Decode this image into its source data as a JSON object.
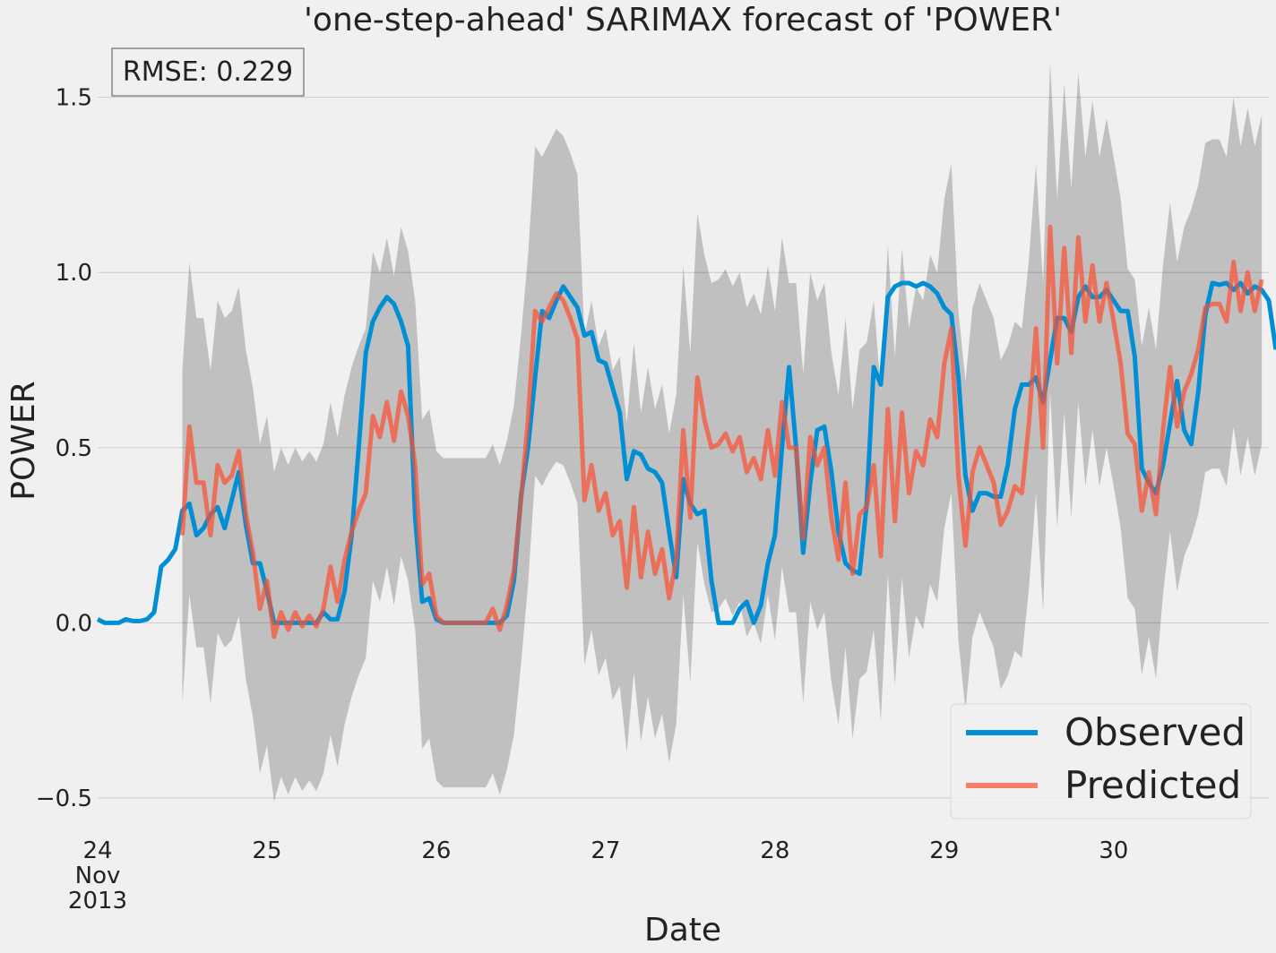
{
  "chart_data": {
    "type": "line",
    "title": "'one-step-ahead' SARIMAX forecast of 'POWER'",
    "xlabel": "Date",
    "ylabel": "POWER",
    "annotation": "RMSE: 0.229",
    "xlim": [
      "2013-11-24 00:00",
      "2013-11-30 22:00"
    ],
    "ylim": [
      -0.6,
      1.65
    ],
    "grid": "y",
    "legend_position": "bottom-right",
    "x_ticks": [
      {
        "date": "2013-11-24",
        "lines": [
          "24",
          "Nov",
          "2013"
        ]
      },
      {
        "date": "2013-11-25",
        "lines": [
          "25"
        ]
      },
      {
        "date": "2013-11-26",
        "lines": [
          "26"
        ]
      },
      {
        "date": "2013-11-27",
        "lines": [
          "27"
        ]
      },
      {
        "date": "2013-11-28",
        "lines": [
          "28"
        ]
      },
      {
        "date": "2013-11-29",
        "lines": [
          "29"
        ]
      },
      {
        "date": "2013-11-30",
        "lines": [
          "30"
        ]
      }
    ],
    "y_ticks": [
      {
        "value": -0.5,
        "label": "−0.5"
      },
      {
        "value": 0.0,
        "label": "0.0"
      },
      {
        "value": 0.5,
        "label": "0.5"
      },
      {
        "value": 1.0,
        "label": "1.0"
      },
      {
        "value": 1.5,
        "label": "1.5"
      }
    ],
    "interval_step_hours": 1,
    "series": [
      {
        "name": "Observed",
        "color": "#008fd5",
        "x_start": "2013-11-24 00:00",
        "step_hours": 1,
        "values": [
          0.01,
          0.0,
          0.0,
          0.0,
          0.01,
          0.005,
          0.005,
          0.01,
          0.03,
          0.16,
          0.18,
          0.21,
          0.32,
          0.34,
          0.25,
          0.27,
          0.31,
          0.33,
          0.27,
          0.35,
          0.43,
          0.28,
          0.17,
          0.17,
          0.09,
          0.0,
          0.0,
          0.0,
          0.0,
          0.0,
          0.0,
          0.0,
          0.03,
          0.01,
          0.01,
          0.09,
          0.25,
          0.5,
          0.77,
          0.86,
          0.9,
          0.93,
          0.91,
          0.86,
          0.79,
          0.3,
          0.06,
          0.07,
          0.01,
          0.0,
          0.0,
          0.0,
          0.0,
          0.0,
          0.0,
          0.0,
          0.0,
          0.0,
          0.02,
          0.12,
          0.36,
          0.5,
          0.7,
          0.89,
          0.87,
          0.92,
          0.96,
          0.93,
          0.9,
          0.82,
          0.83,
          0.75,
          0.74,
          0.67,
          0.6,
          0.41,
          0.49,
          0.48,
          0.44,
          0.43,
          0.4,
          0.26,
          0.13,
          0.41,
          0.34,
          0.31,
          0.32,
          0.12,
          0.0,
          0.0,
          0.0,
          0.04,
          0.06,
          0.0,
          0.05,
          0.17,
          0.25,
          0.5,
          0.73,
          0.5,
          0.2,
          0.4,
          0.55,
          0.56,
          0.43,
          0.26,
          0.17,
          0.15,
          0.14,
          0.34,
          0.73,
          0.68,
          0.93,
          0.96,
          0.97,
          0.97,
          0.96,
          0.97,
          0.96,
          0.94,
          0.9,
          0.88,
          0.7,
          0.42,
          0.32,
          0.37,
          0.37,
          0.36,
          0.36,
          0.45,
          0.61,
          0.68,
          0.68,
          0.7,
          0.63,
          0.75,
          0.87,
          0.87,
          0.83,
          0.93,
          0.96,
          0.93,
          0.93,
          0.95,
          0.92,
          0.89,
          0.89,
          0.76,
          0.44,
          0.4,
          0.37,
          0.45,
          0.57,
          0.69,
          0.55,
          0.51,
          0.66,
          0.88,
          0.97,
          0.965,
          0.97,
          0.95,
          0.97,
          0.94,
          0.96,
          0.95,
          0.92,
          0.78
        ]
      },
      {
        "name": "Predicted",
        "color": "#fc4f30",
        "x_start": "2013-11-24 12:00",
        "step_hours": 1,
        "values": [
          0.25,
          0.56,
          0.4,
          0.4,
          0.25,
          0.45,
          0.4,
          0.42,
          0.49,
          0.31,
          0.2,
          0.04,
          0.12,
          -0.04,
          0.03,
          -0.02,
          0.03,
          -0.01,
          0.02,
          -0.01,
          0.04,
          0.16,
          0.06,
          0.18,
          0.26,
          0.32,
          0.37,
          0.59,
          0.53,
          0.63,
          0.52,
          0.66,
          0.59,
          0.45,
          0.11,
          0.14,
          0.02,
          0.0,
          0.0,
          0.0,
          0.0,
          0.0,
          0.0,
          0.0,
          0.04,
          -0.02,
          0.05,
          0.15,
          0.35,
          0.58,
          0.89,
          0.86,
          0.9,
          0.94,
          0.92,
          0.87,
          0.81,
          0.35,
          0.45,
          0.32,
          0.37,
          0.25,
          0.29,
          0.1,
          0.33,
          0.13,
          0.26,
          0.14,
          0.21,
          0.07,
          0.18,
          0.55,
          0.3,
          0.7,
          0.58,
          0.5,
          0.51,
          0.54,
          0.49,
          0.53,
          0.43,
          0.47,
          0.41,
          0.55,
          0.42,
          0.63,
          0.5,
          0.5,
          0.24,
          0.53,
          0.45,
          0.5,
          0.3,
          0.18,
          0.4,
          0.14,
          0.31,
          0.33,
          0.45,
          0.19,
          0.61,
          0.29,
          0.6,
          0.37,
          0.49,
          0.45,
          0.58,
          0.53,
          0.74,
          0.84,
          0.42,
          0.22,
          0.43,
          0.5,
          0.45,
          0.4,
          0.28,
          0.32,
          0.39,
          0.37,
          0.57,
          0.84,
          0.5,
          1.13,
          0.74,
          1.07,
          0.77,
          1.1,
          0.86,
          1.02,
          0.86,
          0.97,
          0.86,
          0.74,
          0.54,
          0.51,
          0.32,
          0.43,
          0.31,
          0.55,
          0.73,
          0.56,
          0.66,
          0.71,
          0.78,
          0.9,
          0.91,
          0.91,
          0.86,
          1.03,
          0.89,
          1.0,
          0.89,
          0.98
        ]
      }
    ],
    "confidence_interval": {
      "color": "#000000",
      "opacity": 0.2,
      "x_start": "2013-11-24 12:00",
      "step_hours": 1,
      "lower": [
        -0.23,
        0.08,
        -0.07,
        -0.07,
        -0.23,
        -0.03,
        -0.07,
        -0.05,
        0.02,
        -0.16,
        -0.27,
        -0.43,
        -0.35,
        -0.51,
        -0.44,
        -0.49,
        -0.44,
        -0.48,
        -0.45,
        -0.48,
        -0.43,
        -0.32,
        -0.41,
        -0.29,
        -0.21,
        -0.15,
        -0.1,
        0.12,
        0.06,
        0.16,
        0.05,
        0.19,
        0.12,
        -0.02,
        -0.36,
        -0.33,
        -0.45,
        -0.47,
        -0.47,
        -0.47,
        -0.47,
        -0.47,
        -0.47,
        -0.47,
        -0.43,
        -0.49,
        -0.42,
        -0.32,
        -0.12,
        0.11,
        0.42,
        0.39,
        0.43,
        0.46,
        0.45,
        0.4,
        0.34,
        -0.12,
        -0.02,
        -0.15,
        -0.1,
        -0.22,
        -0.18,
        -0.37,
        -0.14,
        -0.34,
        -0.21,
        -0.33,
        -0.26,
        -0.4,
        -0.29,
        0.08,
        -0.17,
        0.23,
        0.11,
        0.03,
        0.04,
        0.07,
        0.02,
        0.06,
        -0.04,
        0.0,
        -0.06,
        0.08,
        -0.05,
        0.16,
        0.03,
        0.03,
        -0.23,
        0.06,
        -0.02,
        0.03,
        -0.17,
        -0.29,
        -0.07,
        -0.33,
        -0.16,
        -0.14,
        -0.02,
        -0.28,
        0.14,
        -0.18,
        0.13,
        -0.1,
        0.02,
        -0.02,
        0.11,
        0.06,
        0.27,
        0.37,
        -0.05,
        -0.25,
        -0.04,
        0.03,
        -0.02,
        -0.07,
        -0.19,
        -0.15,
        -0.08,
        -0.1,
        0.1,
        0.37,
        0.03,
        0.66,
        0.27,
        0.6,
        0.3,
        0.63,
        0.39,
        0.55,
        0.39,
        0.5,
        0.39,
        0.27,
        0.07,
        0.04,
        -0.15,
        -0.04,
        -0.16,
        0.08,
        0.26,
        0.09,
        0.19,
        0.24,
        0.31,
        0.43,
        0.44,
        0.44,
        0.39,
        0.56,
        0.42,
        0.53,
        0.42,
        0.51
      ],
      "upper": [
        0.72,
        1.03,
        0.87,
        0.87,
        0.72,
        0.92,
        0.87,
        0.89,
        0.96,
        0.78,
        0.67,
        0.51,
        0.59,
        0.43,
        0.5,
        0.45,
        0.5,
        0.46,
        0.49,
        0.46,
        0.51,
        0.63,
        0.53,
        0.65,
        0.73,
        0.79,
        0.84,
        1.06,
        1.0,
        1.1,
        0.99,
        1.13,
        1.06,
        0.92,
        0.58,
        0.61,
        0.49,
        0.47,
        0.47,
        0.47,
        0.47,
        0.47,
        0.47,
        0.47,
        0.51,
        0.45,
        0.52,
        0.62,
        0.82,
        1.05,
        1.36,
        1.33,
        1.37,
        1.41,
        1.39,
        1.34,
        1.28,
        0.82,
        0.92,
        0.79,
        0.84,
        0.72,
        0.76,
        0.57,
        0.8,
        0.6,
        0.73,
        0.61,
        0.68,
        0.54,
        0.65,
        1.02,
        0.77,
        1.17,
        1.05,
        0.97,
        0.98,
        1.01,
        0.96,
        1.0,
        0.9,
        0.94,
        0.88,
        1.02,
        0.89,
        1.1,
        0.97,
        0.97,
        0.71,
        1.0,
        0.92,
        0.97,
        0.77,
        0.65,
        0.87,
        0.61,
        0.78,
        0.8,
        0.92,
        0.66,
        1.08,
        0.76,
        1.07,
        0.84,
        0.96,
        0.92,
        1.05,
        1.0,
        1.21,
        1.31,
        0.89,
        0.69,
        0.9,
        0.97,
        0.92,
        0.87,
        0.75,
        0.79,
        0.86,
        0.84,
        1.04,
        1.31,
        0.97,
        1.6,
        1.21,
        1.54,
        1.24,
        1.57,
        1.33,
        1.49,
        1.33,
        1.44,
        1.33,
        1.21,
        1.01,
        0.98,
        0.79,
        0.9,
        0.78,
        1.02,
        1.2,
        1.03,
        1.13,
        1.18,
        1.25,
        1.37,
        1.38,
        1.38,
        1.33,
        1.5,
        1.36,
        1.47,
        1.36,
        1.45
      ]
    }
  }
}
